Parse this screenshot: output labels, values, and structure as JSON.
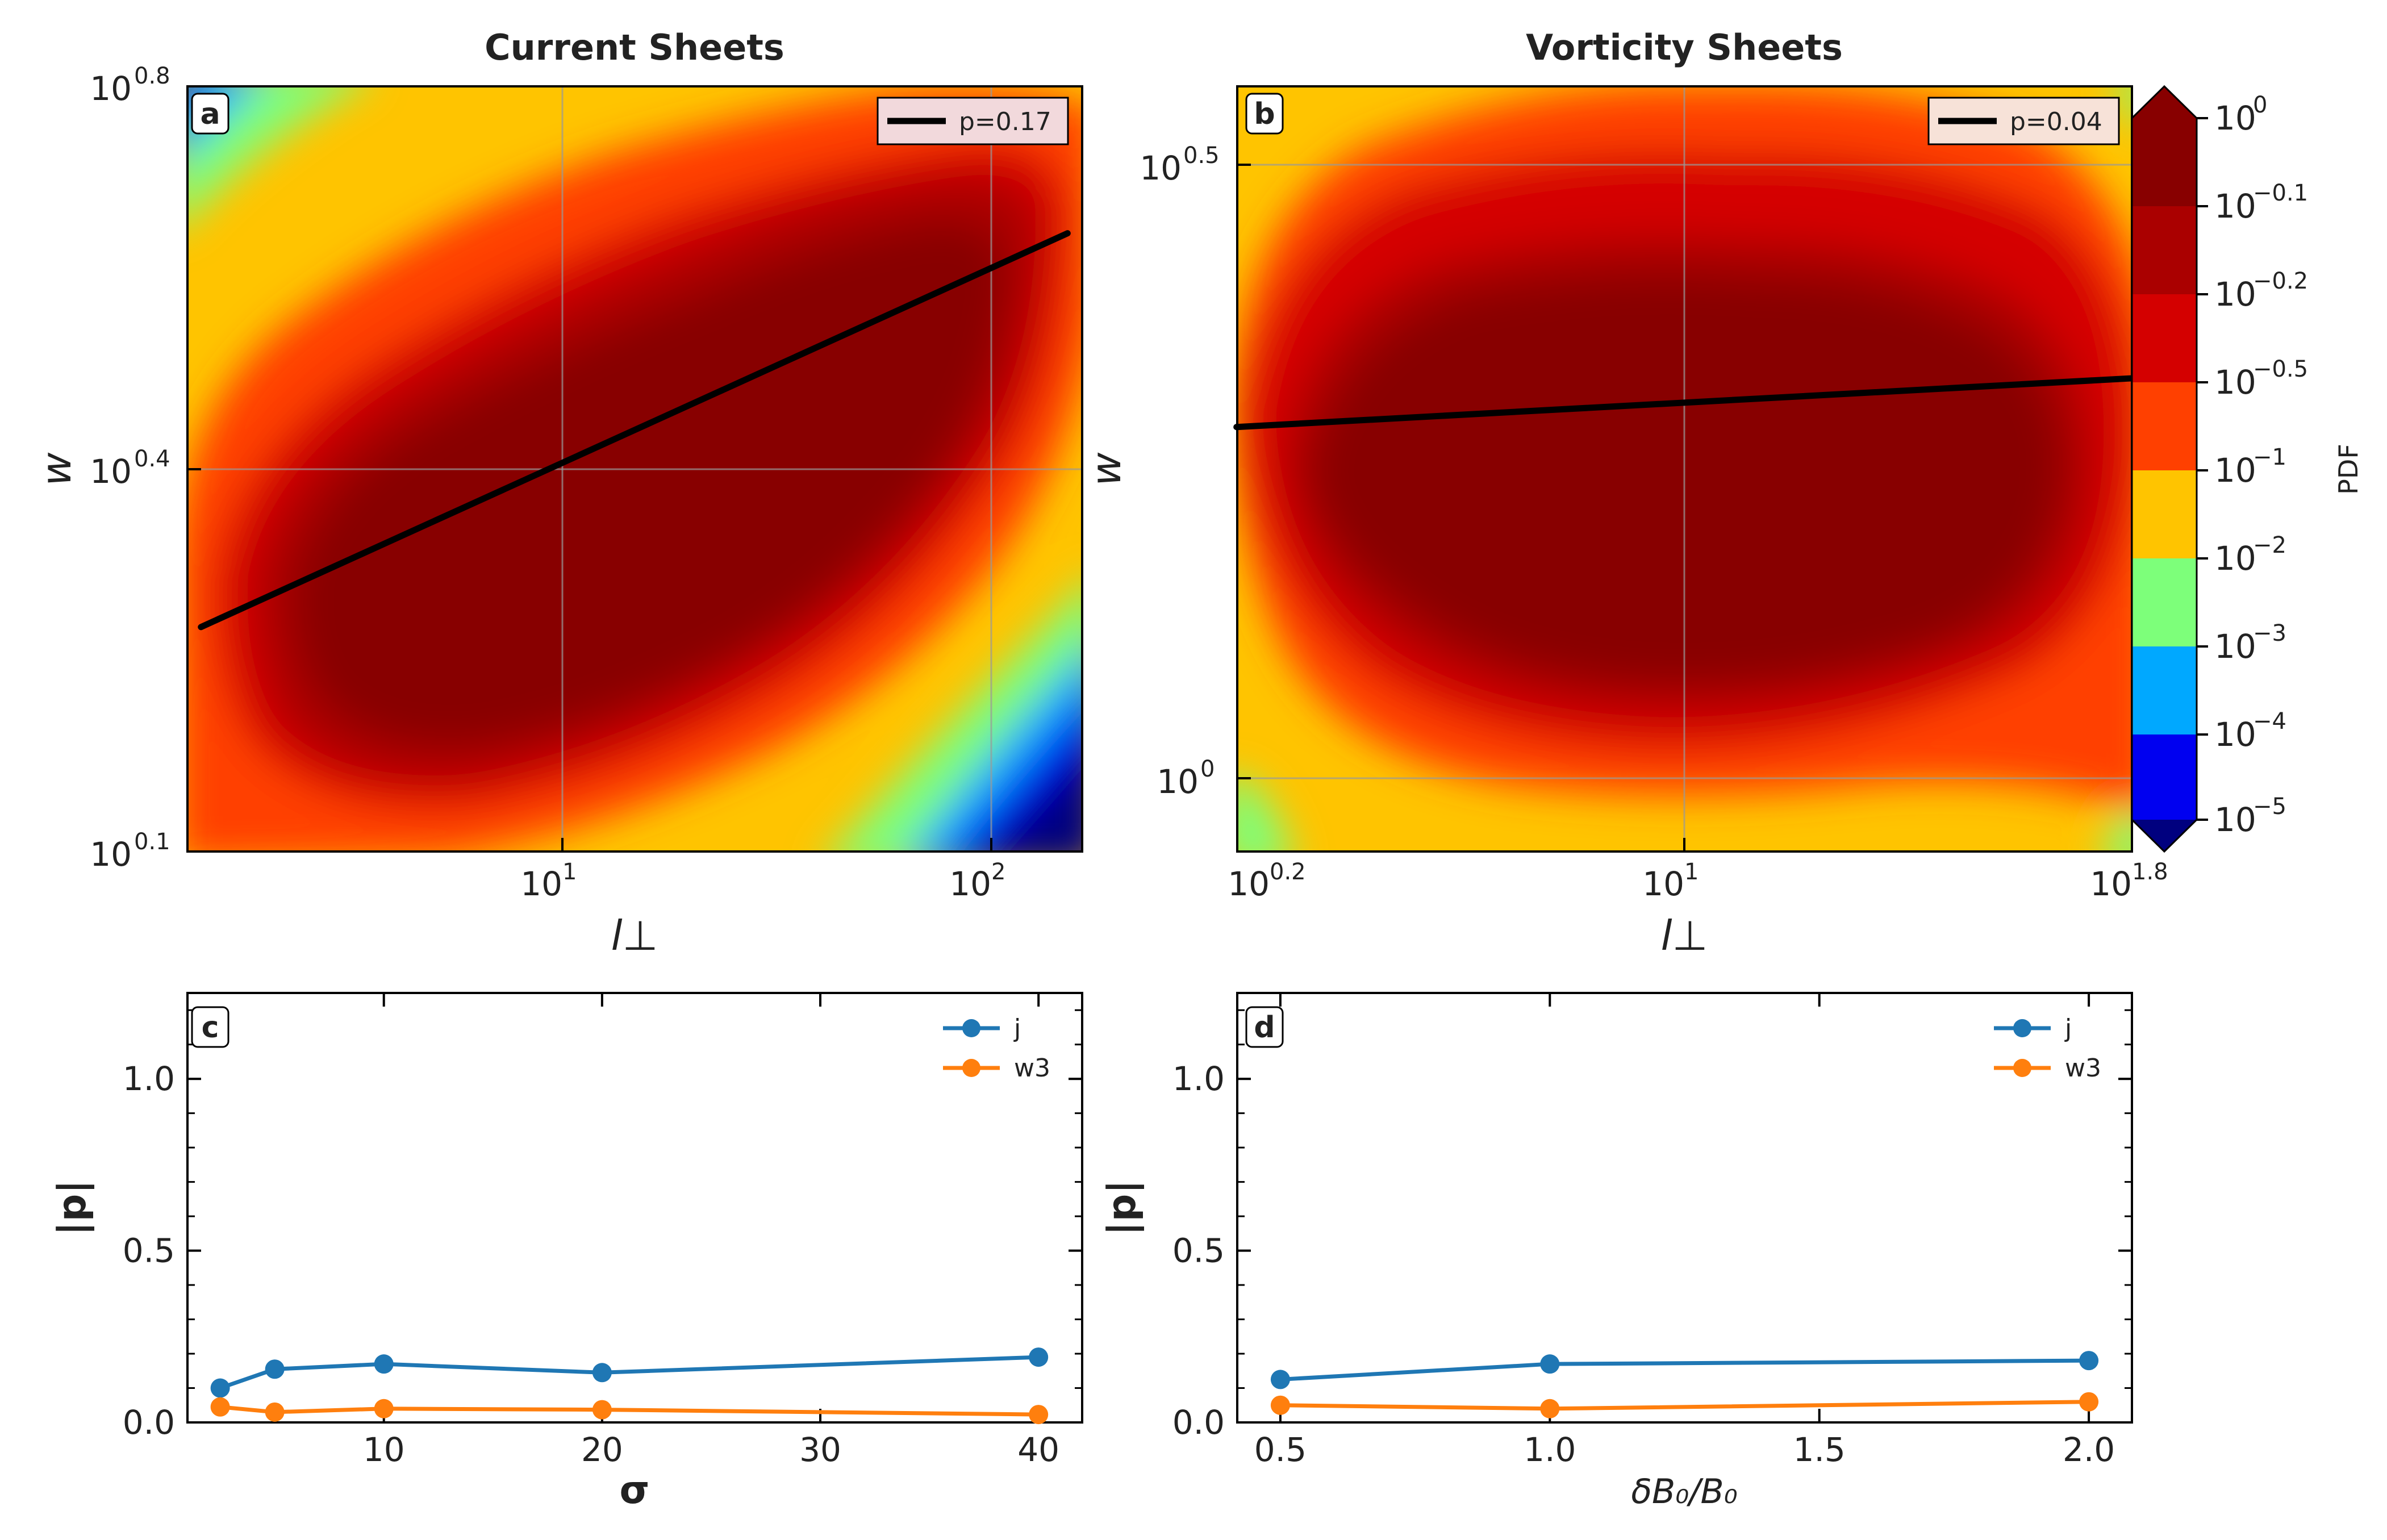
{
  "colors": {
    "levels": [
      "#00007f",
      "#0000f0",
      "#00a8ff",
      "#7dff7a",
      "#ffc400",
      "#ff4000",
      "#d40000",
      "#aa0000",
      "#880000"
    ],
    "series_j": "#1f77b4",
    "series_w3": "#ff7f0e"
  },
  "chart_data": [
    {
      "panel": "a",
      "type": "heatmap",
      "title": "Current Sheets",
      "xlabel": "l⊥",
      "ylabel": "w",
      "x_scale": "log",
      "y_scale": "log",
      "x_ticks": [
        {
          "base": "10",
          "exp": "1"
        },
        {
          "base": "10",
          "exp": "2"
        }
      ],
      "y_ticks": [
        {
          "base": "10",
          "exp": "0.1"
        },
        {
          "base": "10",
          "exp": "0.4"
        },
        {
          "base": "10",
          "exp": "0.8"
        }
      ],
      "fit_line": {
        "legend": "p=0.17",
        "x": [
          1.45,
          150
        ],
        "y": [
          2.02,
          4.63
        ]
      }
    },
    {
      "panel": "b",
      "type": "heatmap",
      "title": "Vorticity Sheets",
      "xlabel": "l⊥",
      "ylabel": "w",
      "x_scale": "log",
      "y_scale": "log",
      "x_ticks": [
        {
          "base": "10",
          "exp": "0.2"
        },
        {
          "base": "10",
          "exp": "1"
        },
        {
          "base": "10",
          "exp": "1.8"
        }
      ],
      "y_ticks": [
        {
          "base": "10",
          "exp": "0"
        },
        {
          "base": "10",
          "exp": "0.5"
        }
      ],
      "fit_line": {
        "legend": "p=0.04",
        "x": [
          1.58,
          63.1
        ],
        "y": [
          1.86,
          2.04
        ]
      },
      "colorbar": {
        "label": "PDF",
        "ticks": [
          {
            "base": "10",
            "exp": "0"
          },
          {
            "base": "10",
            "exp": "−0.1"
          },
          {
            "base": "10",
            "exp": "−0.2"
          },
          {
            "base": "10",
            "exp": "−0.5"
          },
          {
            "base": "10",
            "exp": "−1"
          },
          {
            "base": "10",
            "exp": "−2"
          },
          {
            "base": "10",
            "exp": "−3"
          },
          {
            "base": "10",
            "exp": "−4"
          },
          {
            "base": "10",
            "exp": "−5"
          }
        ]
      }
    },
    {
      "panel": "c",
      "type": "line",
      "xlabel": "σ",
      "ylabel": "|p|",
      "xlim": [
        1,
        42
      ],
      "ylim": [
        0,
        1.25
      ],
      "x_ticks": [
        "10",
        "20",
        "30",
        "40"
      ],
      "y_ticks": [
        "0.0",
        "0.5",
        "1.0"
      ],
      "series": [
        {
          "name": "j",
          "x": [
            2.5,
            5,
            10,
            20,
            40
          ],
          "y": [
            0.1,
            0.155,
            0.17,
            0.145,
            0.19
          ]
        },
        {
          "name": "w3",
          "x": [
            2.5,
            5,
            10,
            20,
            40
          ],
          "y": [
            0.045,
            0.03,
            0.04,
            0.037,
            0.023
          ]
        }
      ]
    },
    {
      "panel": "d",
      "type": "line",
      "xlabel": "δB₀/B₀",
      "ylabel": "|p|",
      "xlim": [
        0.42,
        2.08
      ],
      "ylim": [
        0,
        1.25
      ],
      "x_ticks": [
        "0.5",
        "1.0",
        "1.5",
        "2.0"
      ],
      "y_ticks": [
        "0.0",
        "0.5",
        "1.0"
      ],
      "series": [
        {
          "name": "j",
          "x": [
            0.5,
            1.0,
            2.0
          ],
          "y": [
            0.125,
            0.17,
            0.18
          ]
        },
        {
          "name": "w3",
          "x": [
            0.5,
            1.0,
            2.0
          ],
          "y": [
            0.05,
            0.04,
            0.06
          ]
        }
      ]
    }
  ]
}
